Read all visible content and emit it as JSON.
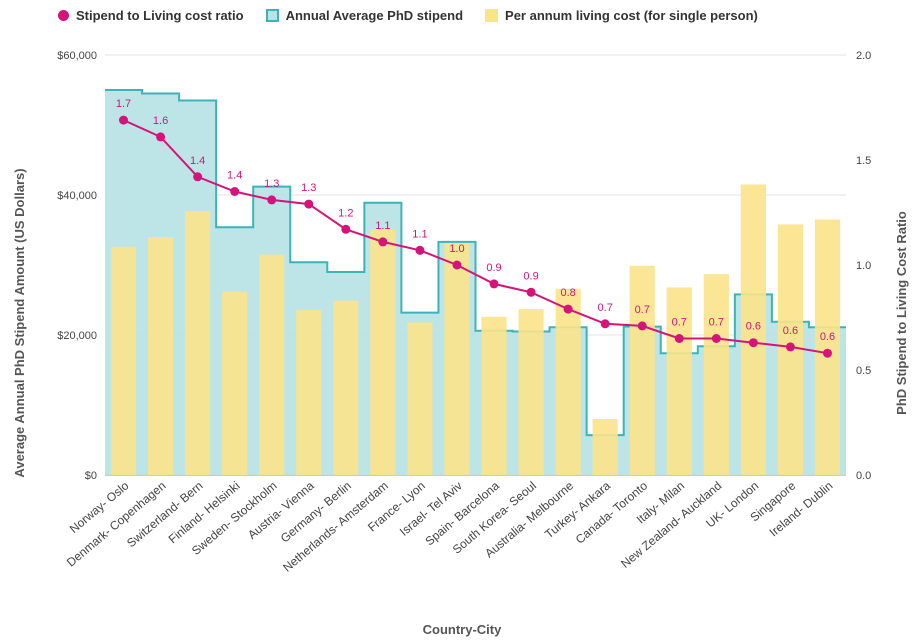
{
  "chart_data": {
    "type": "bar",
    "xlabel": "Country-City",
    "ylabel": "Average Annual PhD Stipend Amount (US Dollars)",
    "y2label": "PhD Stipend to Living Cost Ratio",
    "ylim": [
      0,
      60000
    ],
    "y2lim": [
      0,
      2.0
    ],
    "yticks": [
      "$0",
      "$20,000",
      "$40,000",
      "$60,000"
    ],
    "y2ticks": [
      "0.0",
      "0.5",
      "1.0",
      "1.5",
      "2.0"
    ],
    "grid": true,
    "legend_position": "top",
    "categories": [
      "Norway- Oslo",
      "Denmark- Copenhagen",
      "Switzerland- Bern",
      "Finland- Helsinki",
      "Sweden- Stockholm",
      "Austria- Vienna",
      "Germany- Berlin",
      "Netherlands- Amsterdam",
      "France- Lyon",
      "Israel- Tel Aviv",
      "Spain- Barcelona",
      "South Korea- Seoul",
      "Australia- Melbourne",
      "Turkey- Ankara",
      "Canada- Toronto",
      "Italy- Milan",
      "New Zealand- Auckland",
      "UK- London",
      "Singapore",
      "Ireland- Dublin"
    ],
    "series": [
      {
        "name": "Stipend to Living cost ratio",
        "type": "line",
        "axis": "right",
        "color": "#d4147a",
        "values": [
          1.69,
          1.61,
          1.42,
          1.35,
          1.31,
          1.29,
          1.17,
          1.11,
          1.07,
          1.0,
          0.91,
          0.87,
          0.79,
          0.72,
          0.71,
          0.65,
          0.65,
          0.63,
          0.61,
          0.58
        ],
        "labels": [
          "1.7",
          "1.6",
          "1.4",
          "1.4",
          "1.3",
          "1.3",
          "1.2",
          "1.1",
          "1.1",
          "1.0",
          "0.9",
          "0.9",
          "0.8",
          "0.7",
          "0.7",
          "0.7",
          "0.7",
          "0.6",
          "0.6",
          "0.6"
        ]
      },
      {
        "name": "Annual Average PhD stipend",
        "type": "stepped-area",
        "axis": "left",
        "color": "#3bb3b8",
        "fill": "#b9e3e6",
        "values": [
          55000,
          54500,
          53500,
          35400,
          41200,
          30400,
          29000,
          38900,
          23200,
          33300,
          20600,
          20500,
          21100,
          5700,
          21200,
          17400,
          18400,
          25800,
          21900,
          21100
        ]
      },
      {
        "name": "Per annum living cost (for single person)",
        "type": "bar",
        "axis": "left",
        "color": "#fbe38a",
        "values": [
          32600,
          34000,
          37700,
          26200,
          31500,
          23600,
          24900,
          35100,
          21800,
          33100,
          22600,
          23700,
          26600,
          8000,
          29900,
          26800,
          28700,
          41500,
          35800,
          36500
        ]
      }
    ]
  }
}
